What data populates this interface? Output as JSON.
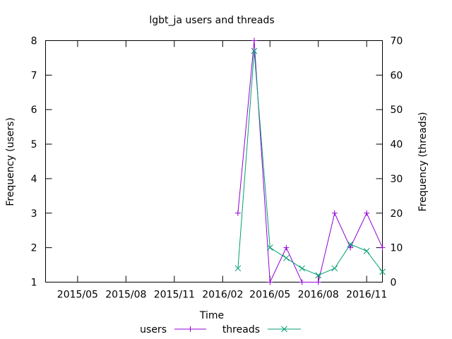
{
  "chart_data": {
    "type": "line",
    "title": "lgbt_ja users and threads",
    "xlabel": "Time",
    "ylabel_left": "Frequency (users)",
    "ylabel_right": "Frequency (threads)",
    "x_tick_labels": [
      "2015/05",
      "2015/08",
      "2015/11",
      "2016/02",
      "2016/05",
      "2016/08",
      "2016/11"
    ],
    "x_tick_dates": [
      "2015-05-01",
      "2015-08-01",
      "2015-11-01",
      "2016-02-01",
      "2016-05-01",
      "2016-08-01",
      "2016-11-01"
    ],
    "xlim": [
      "2015-03-01",
      "2016-12-01"
    ],
    "ylim_left": [
      1,
      8
    ],
    "ylim_right": [
      0,
      70
    ],
    "y_ticks_left": [
      "1",
      "2",
      "3",
      "4",
      "5",
      "6",
      "7",
      "8"
    ],
    "y_ticks_right": [
      "0",
      "10",
      "20",
      "30",
      "40",
      "50",
      "60",
      "70"
    ],
    "grid": false,
    "legend_position": "bottom",
    "series": [
      {
        "name": "users",
        "axis": "left",
        "color": "#9400d3",
        "marker": "plus",
        "x": [
          "2016-03-01",
          "2016-04-01",
          "2016-05-01",
          "2016-06-01",
          "2016-07-01",
          "2016-08-01",
          "2016-09-01",
          "2016-10-01",
          "2016-11-01",
          "2016-12-01"
        ],
        "values": [
          3,
          8,
          1,
          2,
          1,
          1,
          3,
          2,
          3,
          2
        ]
      },
      {
        "name": "threads",
        "axis": "right",
        "color": "#009e73",
        "marker": "x",
        "x": [
          "2016-03-01",
          "2016-04-01",
          "2016-05-01",
          "2016-06-01",
          "2016-07-01",
          "2016-08-01",
          "2016-09-01",
          "2016-10-01",
          "2016-11-01",
          "2016-12-01"
        ],
        "values": [
          4,
          67,
          10,
          7,
          4,
          2,
          4,
          11,
          9,
          3
        ]
      }
    ]
  }
}
